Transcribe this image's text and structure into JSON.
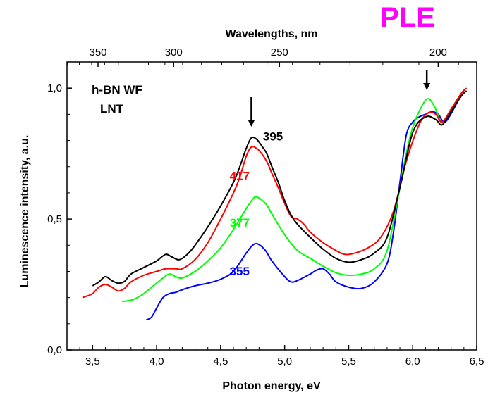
{
  "chart_data": {
    "type": "line",
    "title": "PLE",
    "title_color": "#ff00ff",
    "xlabel": "Photon energy, eV",
    "ylabel": "Luminescence intensity, a.u.",
    "x2label": "Wavelengths, nm",
    "xlim": [
      3.3,
      6.5
    ],
    "ylim": [
      0.0,
      1.1
    ],
    "x_ticks": [
      3.5,
      4.0,
      4.5,
      5.0,
      5.5,
      6.0,
      6.5
    ],
    "x_tick_labels": [
      "3,5",
      "4,0",
      "4,5",
      "5,0",
      "5,5",
      "6,0",
      "6,5"
    ],
    "y_ticks": [
      0.0,
      0.5,
      1.0
    ],
    "y_tick_labels": [
      "0,0",
      "0,5",
      "1,0"
    ],
    "x2_ticks_nm": [
      350,
      300,
      250,
      200
    ],
    "x2_tick_labels": [
      "350",
      "300",
      "250",
      "200"
    ],
    "grid": false,
    "annotations": {
      "sample": "h-BN WF",
      "temperature": "LNT"
    },
    "arrows_at_x": [
      4.74,
      6.11
    ],
    "series": [
      {
        "name": "395",
        "color": "#000000",
        "x": [
          3.5,
          3.55,
          3.6,
          3.65,
          3.7,
          3.75,
          3.8,
          3.9,
          4.0,
          4.07,
          4.12,
          4.18,
          4.25,
          4.3,
          4.4,
          4.5,
          4.6,
          4.65,
          4.7,
          4.74,
          4.78,
          4.82,
          4.86,
          4.9,
          4.95,
          5.0,
          5.05,
          5.1,
          5.2,
          5.3,
          5.4,
          5.5,
          5.6,
          5.7,
          5.8,
          5.9,
          6.0,
          6.1,
          6.18,
          6.23,
          6.3,
          6.38,
          6.42
        ],
        "y": [
          0.245,
          0.26,
          0.28,
          0.265,
          0.255,
          0.262,
          0.29,
          0.315,
          0.34,
          0.365,
          0.355,
          0.345,
          0.37,
          0.4,
          0.47,
          0.55,
          0.64,
          0.7,
          0.77,
          0.81,
          0.805,
          0.78,
          0.75,
          0.7,
          0.64,
          0.57,
          0.515,
          0.48,
          0.43,
          0.385,
          0.35,
          0.335,
          0.345,
          0.37,
          0.43,
          0.62,
          0.83,
          0.89,
          0.88,
          0.86,
          0.91,
          0.97,
          0.99
        ]
      },
      {
        "name": "417",
        "color": "#ff0000",
        "x": [
          3.42,
          3.45,
          3.5,
          3.55,
          3.6,
          3.65,
          3.7,
          3.75,
          3.8,
          3.9,
          4.0,
          4.07,
          4.15,
          4.2,
          4.3,
          4.4,
          4.5,
          4.6,
          4.65,
          4.7,
          4.74,
          4.78,
          4.82,
          4.86,
          4.9,
          4.95,
          5.0,
          5.05,
          5.1,
          5.15,
          5.2,
          5.3,
          5.4,
          5.47,
          5.55,
          5.65,
          5.75,
          5.85,
          5.95,
          6.05,
          6.12,
          6.18,
          6.23,
          6.3,
          6.38,
          6.42
        ],
        "y": [
          0.2,
          0.205,
          0.215,
          0.24,
          0.25,
          0.24,
          0.225,
          0.235,
          0.26,
          0.285,
          0.3,
          0.31,
          0.31,
          0.31,
          0.345,
          0.41,
          0.5,
          0.6,
          0.66,
          0.74,
          0.775,
          0.77,
          0.75,
          0.72,
          0.675,
          0.62,
          0.56,
          0.51,
          0.5,
          0.48,
          0.45,
          0.41,
          0.38,
          0.365,
          0.37,
          0.39,
          0.43,
          0.53,
          0.72,
          0.86,
          0.905,
          0.9,
          0.87,
          0.92,
          0.98,
          1.0
        ]
      },
      {
        "name": "377",
        "color": "#00ff00",
        "x": [
          3.73,
          3.8,
          3.85,
          3.9,
          3.95,
          4.0,
          4.05,
          4.1,
          4.15,
          4.2,
          4.3,
          4.4,
          4.5,
          4.6,
          4.7,
          4.75,
          4.78,
          4.85,
          4.9,
          5.0,
          5.1,
          5.2,
          5.3,
          5.4,
          5.5,
          5.6,
          5.7,
          5.8,
          5.9,
          5.95,
          6.0,
          6.07,
          6.12,
          6.17,
          6.23,
          6.3,
          6.38,
          6.42
        ],
        "y": [
          0.185,
          0.19,
          0.2,
          0.215,
          0.235,
          0.255,
          0.275,
          0.29,
          0.28,
          0.275,
          0.3,
          0.34,
          0.39,
          0.46,
          0.54,
          0.575,
          0.585,
          0.56,
          0.52,
          0.44,
          0.38,
          0.35,
          0.32,
          0.295,
          0.285,
          0.29,
          0.31,
          0.38,
          0.62,
          0.75,
          0.85,
          0.93,
          0.96,
          0.93,
          0.87,
          0.92,
          0.98,
          1.0
        ]
      },
      {
        "name": "355",
        "color": "#0000ff",
        "x": [
          3.92,
          3.96,
          4.0,
          4.05,
          4.1,
          4.15,
          4.2,
          4.3,
          4.4,
          4.5,
          4.6,
          4.7,
          4.75,
          4.79,
          4.85,
          4.9,
          5.0,
          5.05,
          5.1,
          5.2,
          5.25,
          5.3,
          5.35,
          5.4,
          5.5,
          5.6,
          5.7,
          5.8,
          5.85,
          5.9,
          5.95,
          6.0,
          6.05,
          6.1,
          6.15,
          6.2,
          6.25,
          6.32,
          6.38,
          6.42
        ],
        "y": [
          0.115,
          0.125,
          0.16,
          0.2,
          0.215,
          0.22,
          0.23,
          0.245,
          0.255,
          0.27,
          0.3,
          0.37,
          0.4,
          0.405,
          0.38,
          0.34,
          0.28,
          0.26,
          0.265,
          0.29,
          0.305,
          0.31,
          0.29,
          0.26,
          0.24,
          0.235,
          0.26,
          0.33,
          0.45,
          0.64,
          0.82,
          0.87,
          0.89,
          0.9,
          0.91,
          0.9,
          0.87,
          0.92,
          0.98,
          1.0
        ]
      }
    ]
  }
}
